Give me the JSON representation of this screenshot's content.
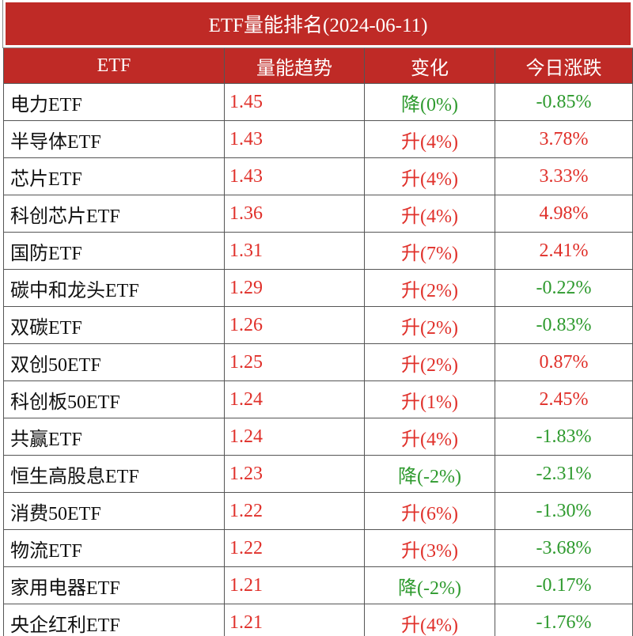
{
  "title": "ETF量能排名(2024-06-11)",
  "columns": [
    "ETF",
    "量能趋势",
    "变化",
    "今日涨跌"
  ],
  "rows": [
    [
      "电力ETF",
      "1.45",
      "降(0%)",
      "-0.85%"
    ],
    [
      "半导体ETF",
      "1.43",
      "升(4%)",
      "3.78%"
    ],
    [
      "芯片ETF",
      "1.43",
      "升(4%)",
      "3.33%"
    ],
    [
      "科创芯片ETF",
      "1.36",
      "升(4%)",
      "4.98%"
    ],
    [
      "国防ETF",
      "1.31",
      "升(7%)",
      "2.41%"
    ],
    [
      "碳中和龙头ETF",
      "1.29",
      "升(2%)",
      "-0.22%"
    ],
    [
      "双碳ETF",
      "1.26",
      "升(2%)",
      "-0.83%"
    ],
    [
      "双创50ETF",
      "1.25",
      "升(2%)",
      "0.87%"
    ],
    [
      "科创板50ETF",
      "1.24",
      "升(1%)",
      "2.45%"
    ],
    [
      "共赢ETF",
      "1.24",
      "升(4%)",
      "-1.83%"
    ],
    [
      "恒生高股息ETF",
      "1.23",
      "降(-2%)",
      "-2.31%"
    ],
    [
      "消费50ETF",
      "1.22",
      "升(6%)",
      "-1.30%"
    ],
    [
      "物流ETF",
      "1.22",
      "升(3%)",
      "-3.68%"
    ],
    [
      "家用电器ETF",
      "1.21",
      "降(-2%)",
      "-0.17%"
    ],
    [
      "央企红利ETF",
      "1.21",
      "升(4%)",
      "-1.76%"
    ]
  ],
  "change_colors": [
    "#2e9a2e",
    "#e0302a",
    "#e0302a",
    "#e0302a",
    "#e0302a",
    "#e0302a",
    "#e0302a",
    "#e0302a",
    "#e0302a",
    "#e0302a",
    "#2e9a2e",
    "#e0302a",
    "#e0302a",
    "#2e9a2e",
    "#e0302a"
  ],
  "colors": {
    "rise": "#e0302a",
    "fall": "#2e9a2e",
    "header": "#bf2a26"
  }
}
